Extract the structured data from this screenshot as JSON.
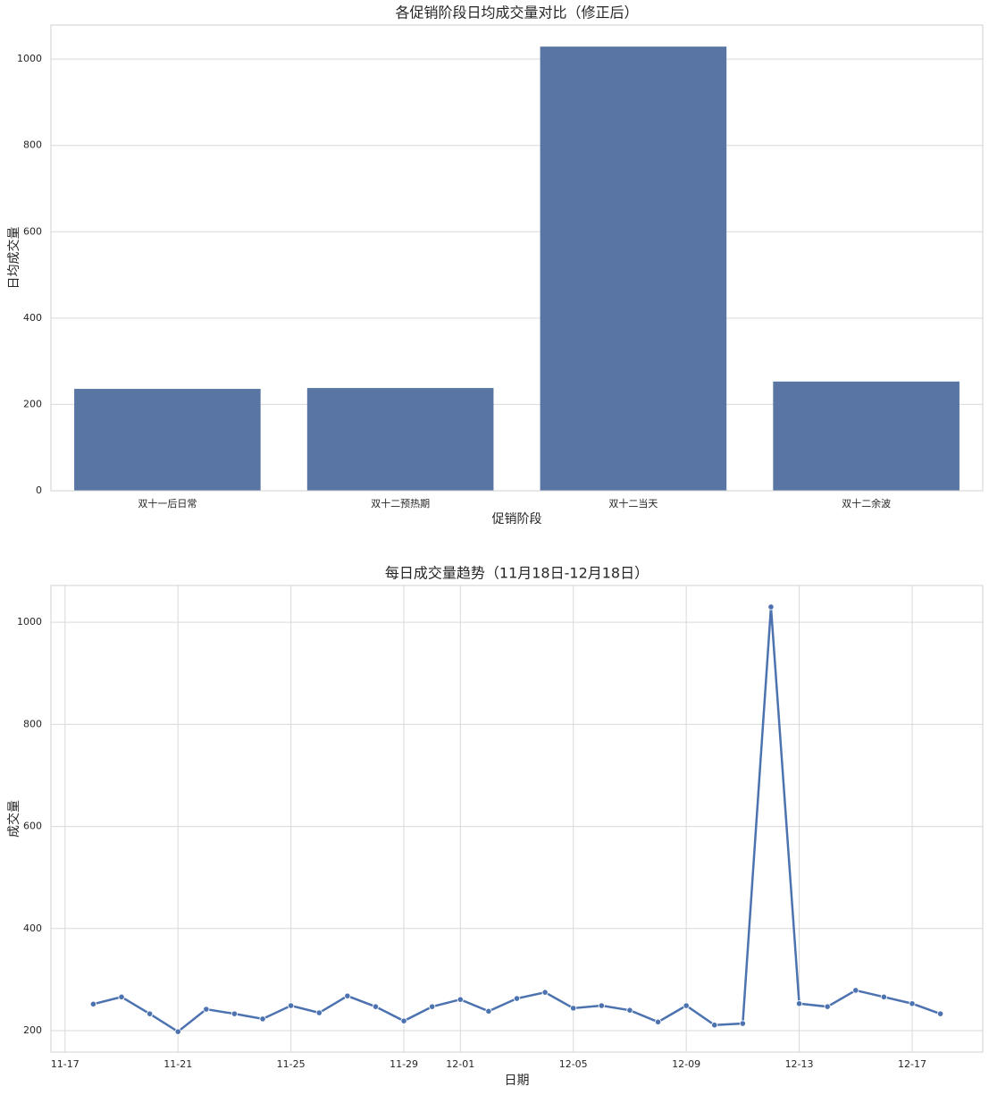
{
  "chart_data": [
    {
      "type": "bar",
      "title": "各促销阶段日均成交量对比（修正后）",
      "x_label": "促销阶段",
      "y_label": "日均成交量",
      "categories": [
        "双十一后日常",
        "双十二预热期",
        "双十二当天",
        "双十二余波"
      ],
      "values": [
        236,
        238,
        1029,
        253
      ],
      "color": "#5875a4",
      "ylim": [
        0,
        1079
      ],
      "yticks": [
        0,
        200,
        400,
        600,
        800,
        1000
      ],
      "grid": "y"
    },
    {
      "type": "line",
      "title": "每日成交量趋势（11月18日-12月18日）",
      "x_label": "日期",
      "y_label": "成交量",
      "x": [
        "11-18",
        "11-19",
        "11-20",
        "11-21",
        "11-22",
        "11-23",
        "11-24",
        "11-25",
        "11-26",
        "11-27",
        "11-28",
        "11-29",
        "11-30",
        "12-01",
        "12-02",
        "12-03",
        "12-04",
        "12-05",
        "12-06",
        "12-07",
        "12-08",
        "12-09",
        "12-10",
        "12-11",
        "12-12",
        "12-13",
        "12-14",
        "12-15",
        "12-16",
        "12-17",
        "12-18"
      ],
      "series": [
        {
          "name": "成交量",
          "color": "#4c72b0",
          "values": [
            252,
            266,
            233,
            198,
            242,
            233,
            223,
            249,
            235,
            268,
            247,
            219,
            247,
            261,
            238,
            263,
            275,
            244,
            249,
            240,
            217,
            249,
            211,
            214,
            1030,
            253,
            247,
            279,
            266,
            253,
            233
          ]
        }
      ],
      "xticks": [
        "11-17",
        "11-21",
        "11-25",
        "11-29",
        "12-01",
        "12-05",
        "12-09",
        "12-13",
        "12-17"
      ],
      "ylim": [
        158,
        1072
      ],
      "yticks": [
        200,
        400,
        600,
        800,
        1000
      ],
      "grid": "both"
    }
  ]
}
